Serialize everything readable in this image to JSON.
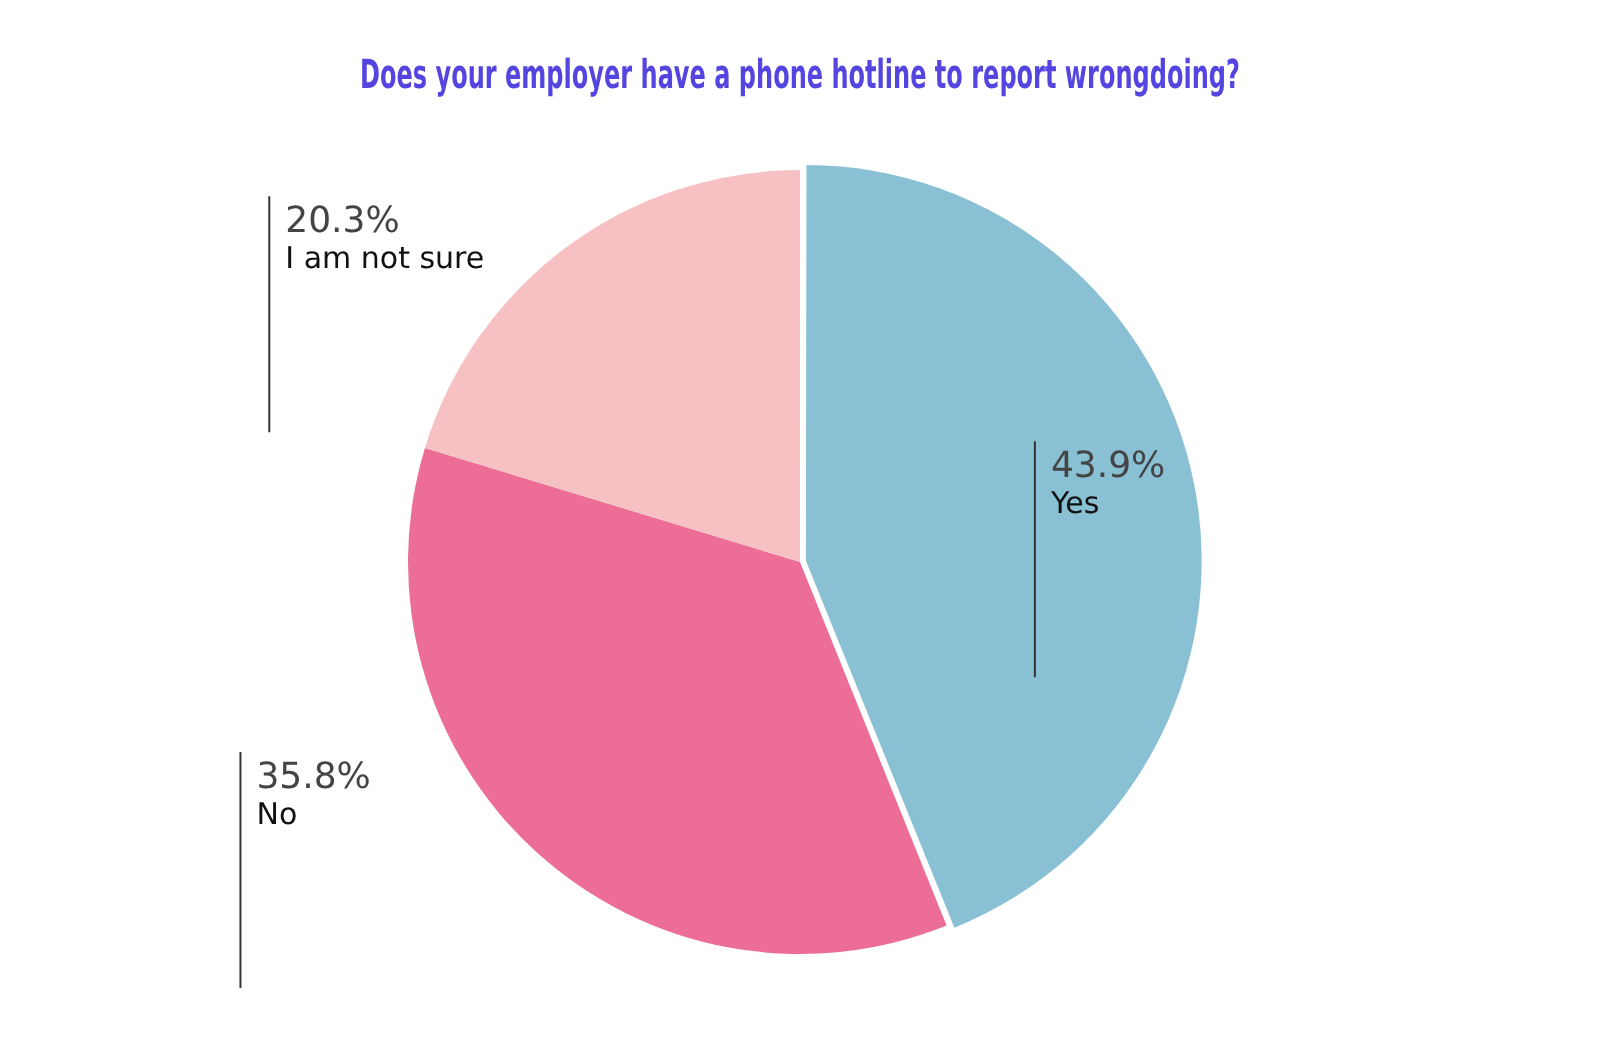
{
  "chart_data": {
    "type": "pie",
    "title": "Does your employer have a phone hotline to report wrongdoing?",
    "categories": [
      "Yes",
      "No",
      "I am not sure"
    ],
    "values": [
      43.9,
      35.8,
      20.3
    ],
    "value_labels": [
      "43.9%",
      "35.8%",
      "20.3%"
    ],
    "colors": [
      "#89c0d4",
      "#ec6d96",
      "#f7c1c3"
    ]
  }
}
